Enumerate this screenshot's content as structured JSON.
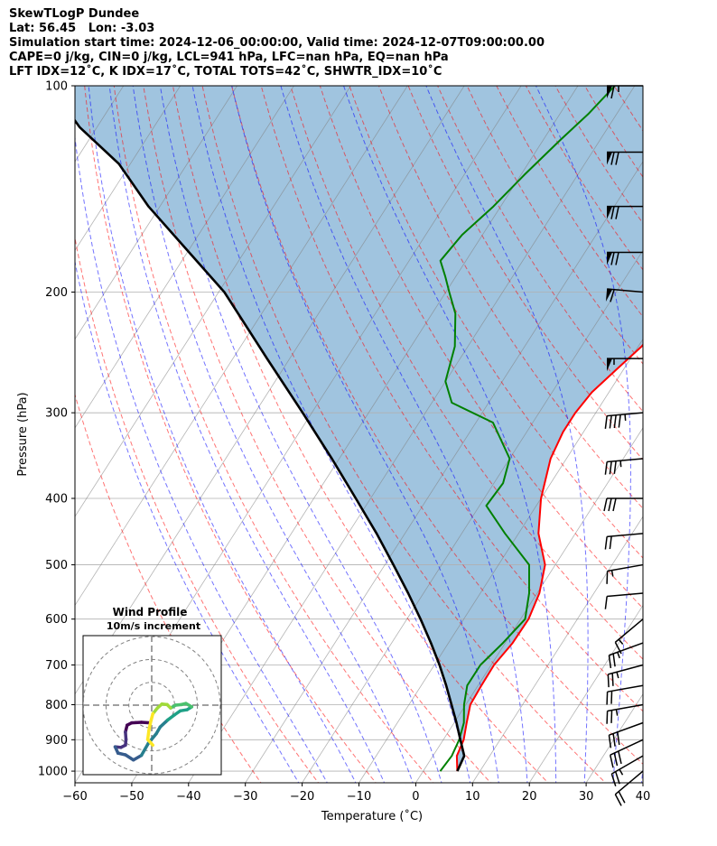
{
  "header": {
    "lines": [
      "SkewTLogP Dundee",
      "Lat: 56.45   Lon: -3.03",
      "Simulation start time: 2024-12-06_00:00:00, Valid time: 2024-12-07T09:00:00.00",
      "CAPE=0 j/kg, CIN=0 j/kg, LCL=941 hPa, LFC=nan hPa, EQ=nan hPa",
      "LFT IDX=12˚C, K IDX=17˚C, TOTAL TOTS=42˚C, SHWTR_IDX=10˚C"
    ]
  },
  "chart_data": {
    "type": "line",
    "subtype": "skew-t log-p",
    "xlabel": "Temperature (˚C)",
    "ylabel": "Pressure (hPa)",
    "xlim": [
      -60,
      40
    ],
    "ylim": [
      1040,
      100
    ],
    "y_scale": "log",
    "grid": true,
    "x_ticks": [
      "−60",
      "−50",
      "−40",
      "−30",
      "−20",
      "−10",
      "0",
      "10",
      "20",
      "30",
      "40"
    ],
    "y_ticks": [
      "100",
      "200",
      "300",
      "400",
      "500",
      "600",
      "700",
      "800",
      "900",
      "1000"
    ],
    "series": [
      {
        "name": "",
        "role": "temperature",
        "color": "#ff0000",
        "points": [
          [
            6.0,
            1000
          ],
          [
            4.2,
            950
          ],
          [
            3.6,
            900
          ],
          [
            2.2,
            850
          ],
          [
            0.8,
            800
          ],
          [
            0.6,
            750
          ],
          [
            0.5,
            700
          ],
          [
            1.3,
            650
          ],
          [
            1.4,
            600
          ],
          [
            0.4,
            550
          ],
          [
            -1.8,
            500
          ],
          [
            -6.5,
            450
          ],
          [
            -10.0,
            400
          ],
          [
            -12.8,
            350
          ],
          [
            -13.6,
            320
          ],
          [
            -13.6,
            300
          ],
          [
            -13.0,
            280
          ],
          [
            -11.3,
            260
          ],
          [
            -9.4,
            240
          ],
          [
            -8.5,
            220
          ],
          [
            -7.7,
            200
          ],
          [
            -6.9,
            185
          ],
          [
            -6.0,
            170
          ],
          [
            -5.3,
            155
          ],
          [
            -4.6,
            140
          ],
          [
            -3.2,
            125
          ],
          [
            -1.5,
            112
          ],
          [
            -0.4,
            100
          ]
        ]
      },
      {
        "name": "",
        "role": "dewpoint",
        "color": "#008000",
        "points": [
          [
            3.0,
            1000
          ],
          [
            3.3,
            950
          ],
          [
            2.8,
            900
          ],
          [
            1.7,
            850
          ],
          [
            -0.3,
            800
          ],
          [
            -1.9,
            750
          ],
          [
            -1.9,
            700
          ],
          [
            -0.4,
            650
          ],
          [
            0.8,
            600
          ],
          [
            -1.4,
            550
          ],
          [
            -4.6,
            500
          ],
          [
            -12.4,
            450
          ],
          [
            -18.8,
            410
          ],
          [
            -18.4,
            380
          ],
          [
            -20.0,
            350
          ],
          [
            -27.0,
            310
          ],
          [
            -36.5,
            290
          ],
          [
            -40.0,
            270
          ],
          [
            -42.3,
            240
          ],
          [
            -45.9,
            215
          ],
          [
            -49.4,
            200
          ],
          [
            -51.8,
            190
          ],
          [
            -54.5,
            180
          ],
          [
            -53.6,
            165
          ],
          [
            -51.3,
            150
          ],
          [
            -49.4,
            135
          ],
          [
            -47.0,
            120
          ],
          [
            -45.0,
            110
          ],
          [
            -43.5,
            100
          ]
        ]
      },
      {
        "name": "",
        "role": "parcel",
        "color": "#000000",
        "points": [
          [
            6.0,
            1000
          ],
          [
            5.5,
            950
          ],
          [
            3.0,
            900
          ],
          [
            0.4,
            850
          ],
          [
            -2.5,
            800
          ],
          [
            -5.6,
            750
          ],
          [
            -9.1,
            700
          ],
          [
            -13.1,
            650
          ],
          [
            -17.6,
            600
          ],
          [
            -22.7,
            550
          ],
          [
            -28.5,
            500
          ],
          [
            -35.0,
            450
          ],
          [
            -42.6,
            400
          ],
          [
            -51.3,
            350
          ],
          [
            -61.6,
            300
          ],
          [
            -74.0,
            250
          ],
          [
            -89.0,
            200
          ],
          [
            -102.0,
            170
          ],
          [
            -112.0,
            150
          ],
          [
            -122.0,
            130
          ],
          [
            -133.0,
            115
          ],
          [
            -143.0,
            100
          ]
        ]
      }
    ],
    "background_lines": {
      "dry_adiabats_color": "#ff0000",
      "moist_adiabats_color": "#0000ff",
      "isotherms_color": "#808080",
      "mixing_ratio_color": "#800080"
    },
    "shaded_region_color": "#a0c4df",
    "wind_barbs": {
      "pressure": [
        100,
        125,
        150,
        175,
        200,
        250,
        300,
        350,
        400,
        450,
        500,
        550,
        600,
        650,
        700,
        750,
        800,
        850,
        900,
        950,
        1000
      ],
      "direction_deg": [
        270,
        270,
        270,
        270,
        275,
        270,
        265,
        265,
        270,
        265,
        260,
        265,
        230,
        250,
        255,
        260,
        260,
        250,
        245,
        240,
        230
      ],
      "speed_kt": [
        65,
        70,
        70,
        70,
        60,
        55,
        45,
        35,
        30,
        20,
        15,
        10,
        15,
        25,
        25,
        20,
        25,
        30,
        30,
        25,
        20
      ]
    }
  },
  "inset": {
    "title": "Wind Profile",
    "subtitle": "10m/s increment",
    "hodograph": [
      [
        0.2,
        -7.0
      ],
      [
        -0.7,
        -6.0
      ],
      [
        -0.5,
        -4.5
      ],
      [
        -0.2,
        -3.0
      ],
      [
        0.2,
        -1.5
      ],
      [
        1.0,
        -0.5
      ],
      [
        1.8,
        0.2
      ],
      [
        2.7,
        0.1
      ],
      [
        3.3,
        -0.5
      ],
      [
        4.2,
        0.0
      ],
      [
        5.2,
        0.1
      ],
      [
        6.0,
        0.3
      ],
      [
        7.0,
        -0.3
      ],
      [
        6.2,
        -0.8
      ],
      [
        5.0,
        -1.0
      ],
      [
        4.0,
        -1.7
      ],
      [
        2.8,
        -2.6
      ],
      [
        1.5,
        -3.8
      ],
      [
        0.8,
        -5.0
      ],
      [
        -0.6,
        -6.7
      ],
      [
        -1.8,
        -8.8
      ],
      [
        -3.2,
        -9.6
      ],
      [
        -4.6,
        -8.7
      ],
      [
        -5.9,
        -8.4
      ],
      [
        -6.4,
        -7.3
      ],
      [
        -5.4,
        -7.4
      ],
      [
        -4.6,
        -7.0
      ],
      [
        -4.5,
        -6.0
      ],
      [
        -4.6,
        -4.7
      ],
      [
        -4.3,
        -3.5
      ],
      [
        -3.5,
        -3.1
      ],
      [
        -1.8,
        -3.0
      ],
      [
        -0.3,
        -3.1
      ]
    ]
  }
}
